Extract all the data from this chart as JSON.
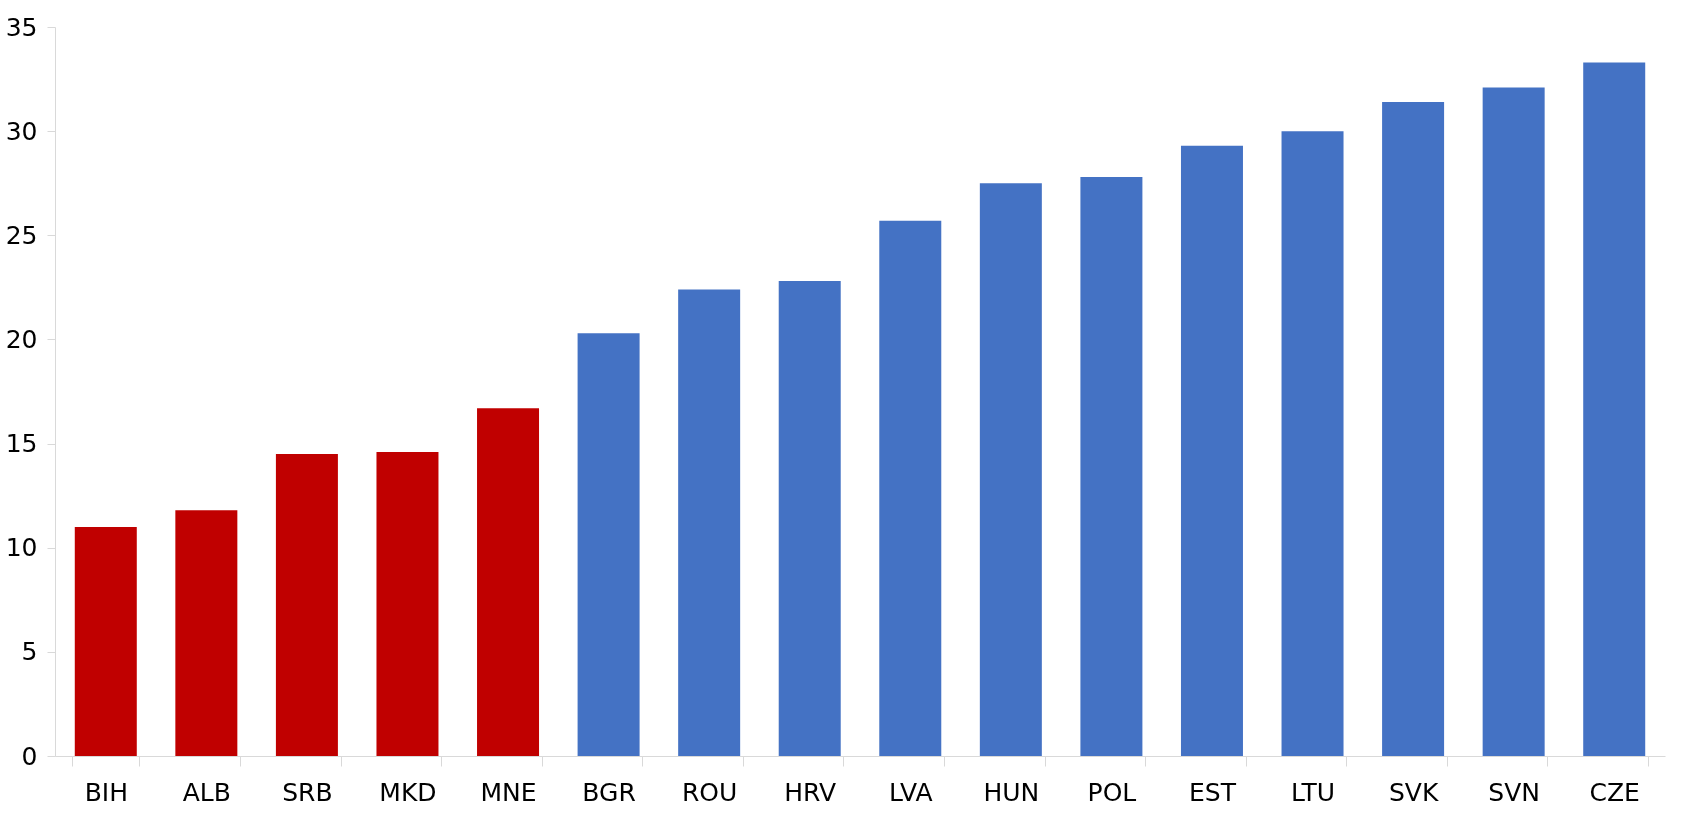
{
  "chart_data": {
    "type": "bar",
    "categories": [
      "BIH",
      "ALB",
      "SRB",
      "MKD",
      "MNE",
      "BGR",
      "ROU",
      "HRV",
      "LVA",
      "HUN",
      "POL",
      "EST",
      "LTU",
      "SVK",
      "SVN",
      "CZE"
    ],
    "values": [
      11.0,
      11.8,
      14.5,
      14.6,
      16.7,
      20.3,
      22.4,
      22.8,
      25.7,
      27.5,
      27.8,
      29.3,
      30.0,
      31.4,
      32.1,
      33.3
    ],
    "colors": [
      "#c00000",
      "#c00000",
      "#c00000",
      "#c00000",
      "#c00000",
      "#4472c4",
      "#4472c4",
      "#4472c4",
      "#4472c4",
      "#4472c4",
      "#4472c4",
      "#4472c4",
      "#4472c4",
      "#4472c4",
      "#4472c4",
      "#4472c4"
    ],
    "ylim": [
      0,
      35
    ],
    "yticks": [
      0,
      5,
      10,
      15,
      20,
      25,
      30,
      35
    ]
  }
}
